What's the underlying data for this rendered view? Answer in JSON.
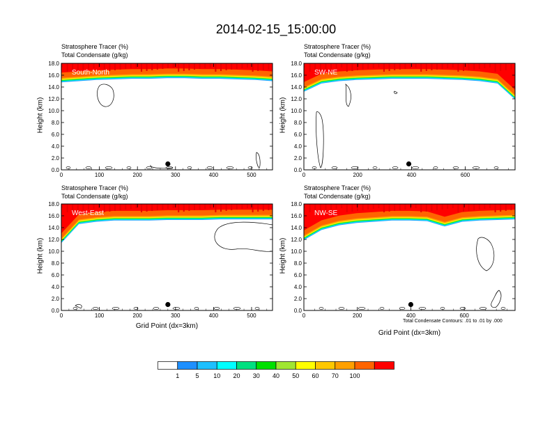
{
  "title": "2014-02-15_15:00:00",
  "panels": [
    {
      "id": "south-north",
      "label": "South-North",
      "field1": "Stratosphere Tracer   (%)",
      "field2": "Total Condensate   (g/kg)",
      "ylabel": "Height (km)",
      "xlabel": "",
      "xticks": [
        "0",
        "100",
        "200",
        "300",
        "400",
        "500"
      ],
      "xmax": 555,
      "marker_x": 280,
      "tropopause": [
        15.4,
        15.6,
        15.8,
        15.9,
        16.0,
        16.0,
        16.1,
        16.1,
        16.0,
        16.0,
        15.9,
        15.8,
        15.6
      ]
    },
    {
      "id": "sw-ne",
      "label": "SW-NE",
      "field1": "Stratosphere Tracer   (%)",
      "field2": "Total Condensate   (g/kg)",
      "ylabel": "",
      "xlabel": "",
      "xticks": [
        "0",
        "200",
        "400",
        "600"
      ],
      "xmax": 785,
      "marker_x": 390,
      "tropopause": [
        13.8,
        15.2,
        15.6,
        15.8,
        15.9,
        16.0,
        16.0,
        16.0,
        15.9,
        15.8,
        15.6,
        15.2,
        12.5
      ]
    },
    {
      "id": "west-east",
      "label": "West-East",
      "field1": "Stratosphere Tracer   (%)",
      "field2": "Total Condensate   (g/kg)",
      "ylabel": "Height (km)",
      "xlabel": "Grid Point (dx=3km)",
      "xticks": [
        "0",
        "100",
        "200",
        "300",
        "400",
        "500"
      ],
      "xmax": 555,
      "marker_x": 280,
      "tropopause": [
        12.0,
        15.2,
        15.6,
        15.8,
        15.8,
        15.8,
        15.9,
        15.9,
        15.9,
        16.0,
        16.0,
        16.0,
        16.0
      ]
    },
    {
      "id": "nw-se",
      "label": "NW-SE",
      "field1": "Stratosphere Tracer   (%)",
      "field2": "Total Condensate   (g/kg)",
      "ylabel": "",
      "xlabel": "Grid Point (dx=3km)",
      "xticks": [
        "0",
        "200",
        "400",
        "600"
      ],
      "xmax": 790,
      "marker_x": 400,
      "tropopause": [
        12.5,
        14.2,
        15.0,
        15.4,
        15.6,
        15.8,
        15.8,
        15.7,
        14.8,
        15.6,
        15.8,
        15.9,
        16.0
      ]
    }
  ],
  "yticks": [
    "0.0",
    "2.0",
    "4.0",
    "6.0",
    "8.0",
    "10.0",
    "12.0",
    "14.0",
    "16.0",
    "18.0"
  ],
  "footnote": "Total Condensate Contours: .01 to .01 by .000",
  "colorbar": {
    "labels": [
      "1",
      "5",
      "10",
      "20",
      "30",
      "40",
      "50",
      "60",
      "70",
      "100"
    ],
    "colors": [
      "#ffffff",
      "#1e90ff",
      "#1ec0ff",
      "#00ffff",
      "#00e080",
      "#00e000",
      "#a0e632",
      "#ffff00",
      "#ffc800",
      "#ffa000",
      "#ff6400",
      "#ff0000"
    ]
  },
  "chart_data": [
    {
      "type": "heatmap",
      "title": "",
      "subtitle": "South-North",
      "ylabel": "Height (km)",
      "ylim": [
        0,
        18
      ],
      "xlim": [
        0,
        555
      ]
    },
    {
      "type": "heatmap",
      "title": "",
      "subtitle": "SW-NE",
      "ylabel": "Height (km)",
      "ylim": [
        0,
        18
      ],
      "xlim": [
        0,
        785
      ]
    },
    {
      "type": "heatmap",
      "title": "",
      "subtitle": "West-East",
      "xlabel": "Grid Point (dx=3km)",
      "ylabel": "Height (km)",
      "ylim": [
        0,
        18
      ],
      "xlim": [
        0,
        555
      ]
    },
    {
      "type": "heatmap",
      "title": "",
      "subtitle": "NW-SE",
      "xlabel": "Grid Point (dx=3km)",
      "ylabel": "Height (km)",
      "ylim": [
        0,
        18
      ],
      "xlim": [
        0,
        790
      ]
    }
  ]
}
